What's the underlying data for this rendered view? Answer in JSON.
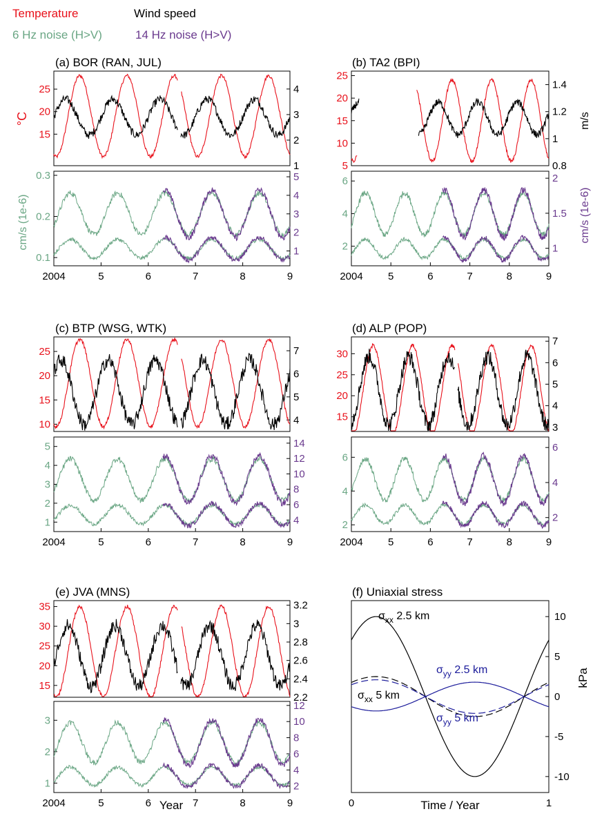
{
  "legend": {
    "temperature": "Temperature",
    "wind_speed": "Wind speed",
    "noise6": "6 Hz noise (H>V)",
    "noise14": "14 Hz noise (H>V)"
  },
  "colors": {
    "temperature": "#e8101a",
    "wind": "#000000",
    "noise6": "#6aa684",
    "noise14": "#6a3a8e",
    "sigma_yy": "#1a1a9a"
  },
  "x_label": "Year",
  "x_ticks": [
    "2004",
    "5",
    "6",
    "7",
    "8",
    "9"
  ],
  "chart_data": [
    {
      "id": "a",
      "type": "line",
      "title": "(a)  BOR  (RAN, JUL)",
      "top": {
        "ylabel_left": "°C",
        "ylabel_right": "m/s",
        "left_ticks": [
          "15",
          "20",
          "25"
        ],
        "right_ticks": [
          "1",
          "2",
          "3",
          "4"
        ],
        "left_range": [
          8,
          29
        ],
        "right_range": [
          1,
          4.7
        ],
        "temp": {
          "mean": 19,
          "amp": 9,
          "phase": 0.55
        },
        "wind": {
          "mean": 2.9,
          "amp": 0.7,
          "phase": 0.25
        }
      },
      "bottom": {
        "ylabel_left": "cm/s (1e-6)",
        "ylabel_right": "",
        "left_ticks": [
          "0.1",
          "0.2",
          "0.3"
        ],
        "right_ticks": [
          "1",
          "2",
          "3",
          "4",
          "5"
        ],
        "left_range": [
          0.08,
          0.31
        ],
        "right_range": [
          0.2,
          5.3
        ]
      }
    },
    {
      "id": "b",
      "type": "line",
      "title": "(b)  TA2  (BPI)",
      "top": {
        "ylabel_left": "",
        "ylabel_right": "m/s",
        "left_ticks": [
          "5",
          "10",
          "15",
          "20",
          "25"
        ],
        "right_ticks": [
          "0.8",
          "1",
          "1.2",
          "1.4"
        ],
        "left_range": [
          5,
          26
        ],
        "right_range": [
          0.8,
          1.5
        ],
        "temp": {
          "mean": 15,
          "amp": 9,
          "phase": 0.55
        },
        "wind": {
          "mean": 1.15,
          "amp": 0.12,
          "phase": 0.2
        }
      },
      "bottom": {
        "ylabel_left": "",
        "ylabel_right": "cm/s (1e-6)",
        "left_ticks": [
          "2",
          "4",
          "6"
        ],
        "right_ticks": [
          "1",
          "1.5",
          "2"
        ],
        "left_range": [
          0.8,
          6.6
        ],
        "right_range": [
          0.75,
          2.1
        ]
      }
    },
    {
      "id": "c",
      "type": "line",
      "title": "(c)  BTP  (WSG, WTK)",
      "top": {
        "ylabel_left": "",
        "ylabel_right": "",
        "left_ticks": [
          "10",
          "15",
          "20",
          "25"
        ],
        "right_ticks": [
          "4",
          "5",
          "6",
          "7"
        ],
        "left_range": [
          8.5,
          28
        ],
        "right_range": [
          3.5,
          7.6
        ],
        "temp": {
          "mean": 18.5,
          "amp": 9,
          "phase": 0.55
        },
        "wind": {
          "mean": 5.2,
          "amp": 1.4,
          "phase": 0.15
        }
      },
      "bottom": {
        "ylabel_left": "",
        "ylabel_right": "",
        "left_ticks": [
          "1",
          "2",
          "3",
          "4",
          "5"
        ],
        "right_ticks": [
          "4",
          "6",
          "8",
          "10",
          "12",
          "14"
        ],
        "left_range": [
          0.5,
          5.5
        ],
        "right_range": [
          2.5,
          14.8
        ]
      }
    },
    {
      "id": "d",
      "type": "line",
      "title": "(d)  ALP  (POP)",
      "top": {
        "ylabel_left": "",
        "ylabel_right": "",
        "left_ticks": [
          "15",
          "20",
          "25",
          "30"
        ],
        "right_ticks": [
          "3",
          "4",
          "5",
          "6",
          "7"
        ],
        "left_range": [
          11.5,
          34
        ],
        "right_range": [
          2.8,
          7.2
        ],
        "temp": {
          "mean": 21.5,
          "amp": 10.5,
          "phase": 0.55
        },
        "wind": {
          "mean": 4.7,
          "amp": 1.6,
          "phase": 0.45
        }
      },
      "bottom": {
        "ylabel_left": "",
        "ylabel_right": "",
        "left_ticks": [
          "2",
          "4",
          "6"
        ],
        "right_ticks": [
          "2",
          "4",
          "6"
        ],
        "left_range": [
          1.6,
          7.2
        ],
        "right_range": [
          1.2,
          6.6
        ]
      }
    },
    {
      "id": "e",
      "type": "line",
      "title": "(e)  JVA  (MNS)",
      "top": {
        "ylabel_left": "",
        "ylabel_right": "",
        "left_ticks": [
          "15",
          "20",
          "25",
          "30",
          "35"
        ],
        "right_ticks": [
          "2.2",
          "2.4",
          "2.6",
          "2.8",
          "3",
          "3.2"
        ],
        "left_range": [
          12,
          36.5
        ],
        "right_range": [
          2.2,
          3.25
        ],
        "temp": {
          "mean": 23.5,
          "amp": 11.5,
          "phase": 0.55
        },
        "wind": {
          "mean": 2.65,
          "amp": 0.33,
          "phase": 0.3
        }
      },
      "bottom": {
        "ylabel_left": "",
        "ylabel_right": "",
        "left_ticks": [
          "1",
          "2",
          "3"
        ],
        "right_ticks": [
          "2",
          "4",
          "6",
          "8",
          "10",
          "12"
        ],
        "left_range": [
          0.7,
          3.6
        ],
        "right_range": [
          1.2,
          12.5
        ]
      }
    },
    {
      "id": "f",
      "type": "line",
      "title": "(f)  Uniaxial stress",
      "xlabel": "Time / Year",
      "ylabel": "kPa",
      "x_ticks": [
        "0",
        "1"
      ],
      "y_ticks": [
        "-10",
        "-5",
        "0",
        "5",
        "10"
      ],
      "xlim": [
        0,
        1
      ],
      "ylim": [
        -12,
        12
      ],
      "series": [
        {
          "name": "σxx 2.5 km",
          "label_main": "σ",
          "label_sub": "xx",
          "label_tail": " 2.5 km",
          "amp": 10,
          "phase": 0.125,
          "style": "solid",
          "color": "#000000"
        },
        {
          "name": "σxx 5 km",
          "label_main": "σ",
          "label_sub": "xx",
          "label_tail": " 5 km",
          "amp": 2.5,
          "phase": 0.125,
          "style": "dashed",
          "color": "#000000"
        },
        {
          "name": "σyy 2.5 km",
          "label_main": "σ",
          "label_sub": "yy",
          "label_tail": " 2.5 km",
          "amp": -1.8,
          "phase": 0.125,
          "style": "solid",
          "color": "#1a1a9a"
        },
        {
          "name": "σyy 5 km",
          "label_main": "σ",
          "label_sub": "yy",
          "label_tail": " 5 km",
          "amp": 2.1,
          "phase": 0.125,
          "style": "dashed",
          "color": "#1a1a9a"
        }
      ]
    }
  ]
}
